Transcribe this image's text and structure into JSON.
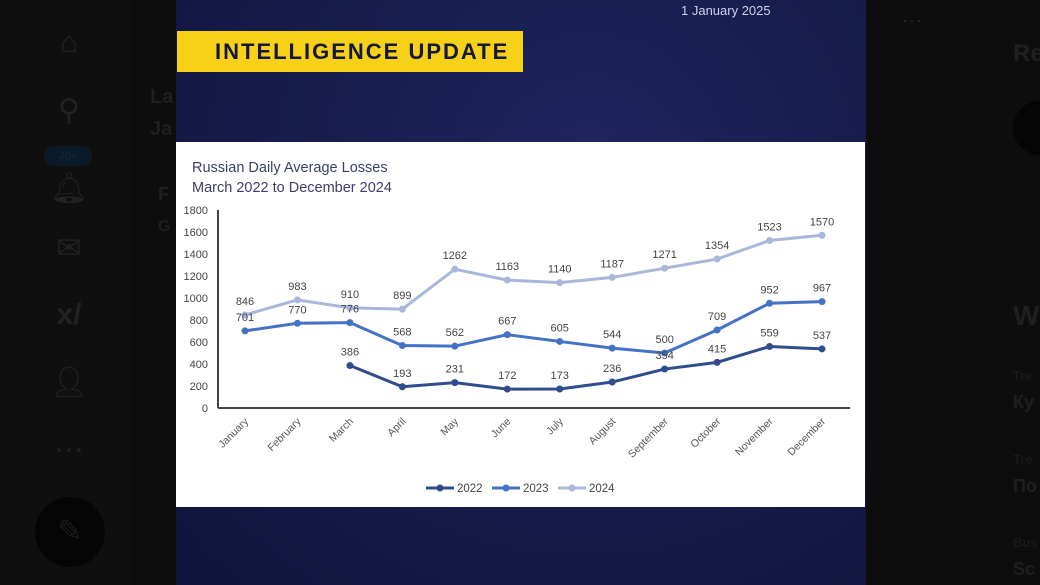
{
  "nav": {
    "items": [
      "home-icon",
      "search-icon",
      "notifications-icon",
      "messages-icon",
      "grok-icon",
      "profile-icon",
      "more-icon"
    ],
    "badge": "20+",
    "compose_icon": "compose-post-icon"
  },
  "background_fragments": {
    "left": [
      "La",
      "Ja",
      "F",
      "G"
    ],
    "right": [
      "Re",
      "W",
      "Tre",
      "Ку",
      "Tre",
      "По",
      "Bus",
      "Sc"
    ],
    "more": "···"
  },
  "media": {
    "date": "1 January 2025",
    "banner": "INTELLIGENCE UPDATE",
    "colors": {
      "banner": "#f7d117",
      "background": "#161b4a"
    }
  },
  "chart_data": {
    "type": "line",
    "title": "Russian Daily Average Losses",
    "subtitle": "March 2022 to December 2024",
    "categories": [
      "January",
      "February",
      "March",
      "April",
      "May",
      "June",
      "July",
      "August",
      "September",
      "October",
      "November",
      "December"
    ],
    "yticks": [
      "0",
      "200",
      "400",
      "600",
      "800",
      "1000",
      "1200",
      "1400",
      "1600",
      "1800"
    ],
    "ylim": [
      0,
      1800
    ],
    "grid": false,
    "legend": "bottom",
    "series": [
      {
        "name": "2022",
        "color": "#2f4d8c",
        "values": [
          null,
          null,
          386,
          193,
          231,
          172,
          173,
          236,
          354,
          415,
          559,
          537
        ]
      },
      {
        "name": "2023",
        "color": "#4472c4",
        "values": [
          701,
          770,
          776,
          568,
          562,
          667,
          605,
          544,
          500,
          709,
          952,
          967
        ]
      },
      {
        "name": "2024",
        "color": "#a9b7db",
        "values": [
          846,
          983,
          910,
          899,
          1262,
          1163,
          1140,
          1187,
          1271,
          1354,
          1523,
          1570
        ]
      }
    ]
  }
}
